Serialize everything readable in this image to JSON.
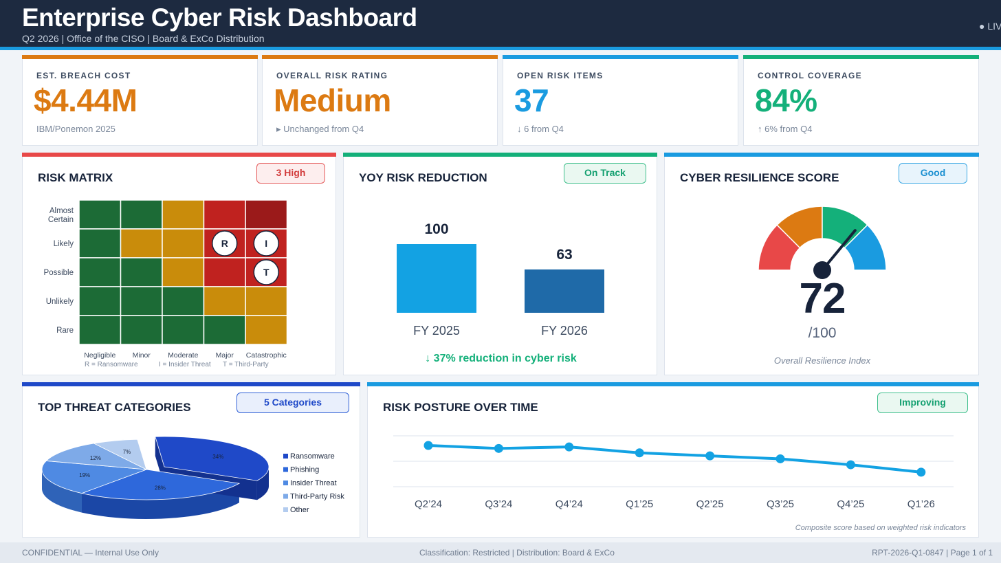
{
  "header": {
    "title": "Enterprise Cyber Risk Dashboard",
    "subtitle": "Q2 2026  |  Office of the CISO  |  Board & ExCo Distribution",
    "live": "● LIV"
  },
  "colors": {
    "orange": "#dc7a12",
    "blue": "#1a9be0",
    "green": "#14b07a",
    "red": "#e84848",
    "navy": "#1d2a40"
  },
  "kpis": [
    {
      "label": "EST. BREACH COST",
      "value": "$4.44M",
      "note": "IBM/Ponemon 2025"
    },
    {
      "label": "OVERALL RISK RATING",
      "value": "Medium",
      "note": "▸  Unchanged from Q4"
    },
    {
      "label": "OPEN RISK ITEMS",
      "value": "37",
      "note": "↓ 6 from Q4"
    },
    {
      "label": "CONTROL COVERAGE",
      "value": "84%",
      "note": "↑ 6% from Q4"
    }
  ],
  "risk_matrix": {
    "title": "RISK MATRIX",
    "badge": "3 High",
    "rows": [
      "Almost Certain",
      "Likely",
      "Possible",
      "Unlikely",
      "Rare"
    ],
    "cols": [
      "Negligible",
      "Minor",
      "Moderate",
      "Major",
      "Catastrophic"
    ],
    "cells": [
      [
        "low",
        "low",
        "med",
        "high",
        "crit"
      ],
      [
        "low",
        "med",
        "med",
        "high",
        "high"
      ],
      [
        "low",
        "low",
        "med",
        "high",
        "high"
      ],
      [
        "low",
        "low",
        "low",
        "med",
        "med"
      ],
      [
        "low",
        "low",
        "low",
        "low",
        "med"
      ]
    ],
    "markers": [
      {
        "label": "R",
        "row": 1,
        "col": 3
      },
      {
        "label": "I",
        "row": 1,
        "col": 4
      },
      {
        "label": "T",
        "row": 2,
        "col": 4
      }
    ],
    "legend": [
      "R = Ransomware",
      "I = Insider Threat",
      "T = Third-Party"
    ]
  },
  "yoy": {
    "title": "YOY RISK REDUCTION",
    "badge": "On Track",
    "footer": "↓ 37%  reduction in cyber risk"
  },
  "resilience": {
    "title": "CYBER RESILIENCE SCORE",
    "badge": "Good",
    "score": "72",
    "max": "/100",
    "score_value": 72,
    "caption": "Overall Resilience Index"
  },
  "threats": {
    "title": "TOP THREAT CATEGORIES",
    "badge": "5 Categories"
  },
  "posture": {
    "title": "RISK POSTURE OVER TIME",
    "badge": "Improving",
    "note": "Composite score based on weighted risk indicators"
  },
  "chart_data": [
    {
      "type": "bar",
      "categories": [
        "FY 2025",
        "FY 2026"
      ],
      "values": [
        100,
        63
      ],
      "title": "YOY RISK REDUCTION",
      "ylim": [
        0,
        100
      ]
    },
    {
      "type": "pie",
      "categories": [
        "Ransomware",
        "Phishing",
        "Insider Threat",
        "Third-Party Risk",
        "Other"
      ],
      "values": [
        34,
        28,
        19,
        12,
        7
      ],
      "value_labels": [
        "34%",
        "28%",
        "19%",
        "12%",
        "7%"
      ],
      "colors": [
        "#1f49c8",
        "#2e68db",
        "#4f8ae3",
        "#7eaae8",
        "#b3ccef"
      ],
      "title": "TOP THREAT CATEGORIES"
    },
    {
      "type": "line",
      "categories": [
        "Q2’24",
        "Q3’24",
        "Q4’24",
        "Q1’25",
        "Q2’25",
        "Q3’25",
        "Q4’25",
        "Q1’26"
      ],
      "values": [
        67,
        65,
        66,
        62,
        60,
        58,
        54,
        49
      ],
      "title": "RISK POSTURE OVER TIME",
      "ylim": [
        0,
        100
      ]
    }
  ],
  "footer": {
    "left": "CONFIDENTIAL — Internal Use Only",
    "center": "Classification: Restricted  |  Distribution: Board & ExCo",
    "right": "RPT-2026-Q1-0847  |  Page 1 of 1"
  }
}
